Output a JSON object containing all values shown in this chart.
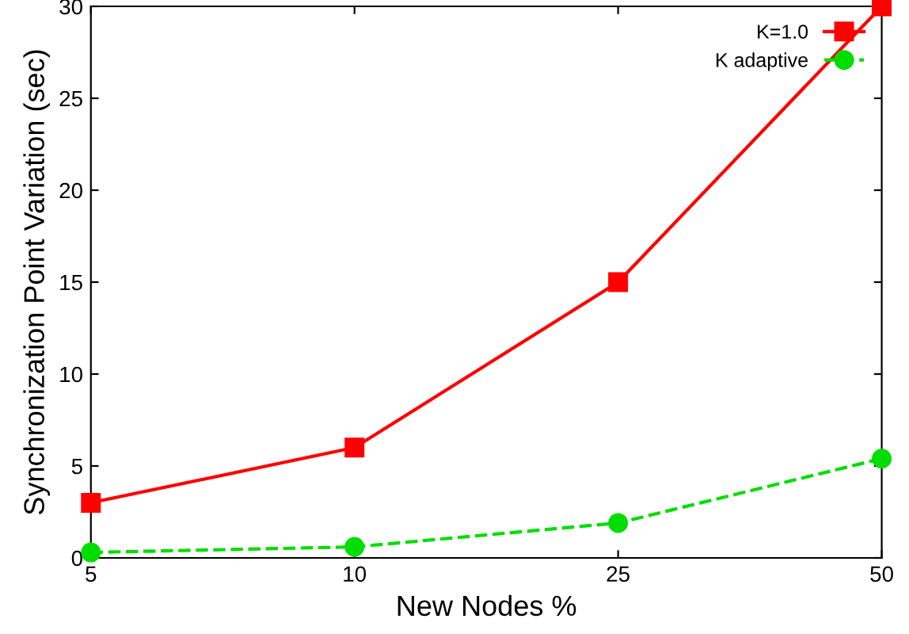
{
  "chart_data": {
    "type": "line",
    "xlabel": "New Nodes %",
    "ylabel": "Synchronization Point Variation (sec)",
    "categories": [
      "5",
      "10",
      "25",
      "50"
    ],
    "series": [
      {
        "name": "K=1.0",
        "color": "#ff0000",
        "values": [
          3,
          6,
          15,
          30
        ],
        "marker": "square",
        "line_style": "solid"
      },
      {
        "name": "K adaptive",
        "color": "#00dd00",
        "values": [
          0.3,
          0.6,
          1.9,
          5.4
        ],
        "marker": "circle",
        "line_style": "dashed"
      }
    ],
    "ylim": [
      0,
      30
    ],
    "yticks": [
      0,
      5,
      10,
      15,
      20,
      25,
      30
    ],
    "grid": false,
    "legend": "top right"
  }
}
